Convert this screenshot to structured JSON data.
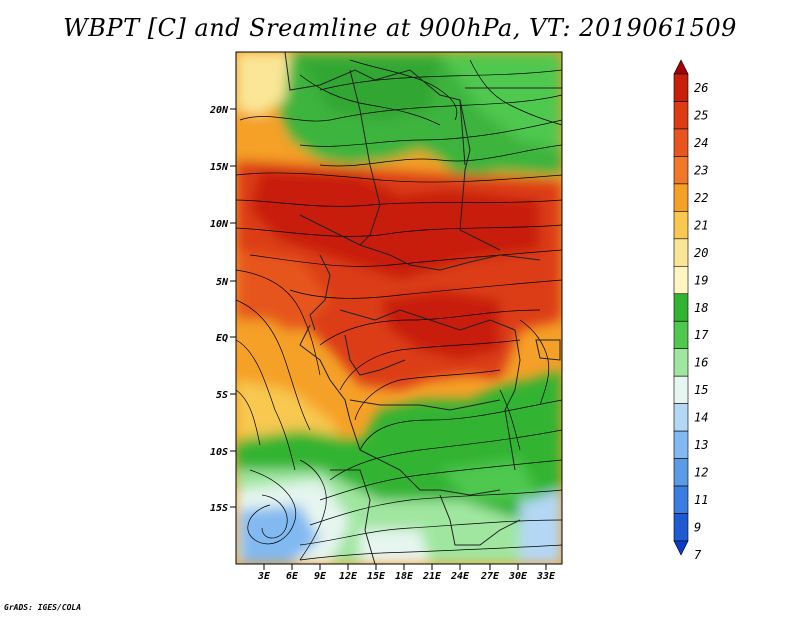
{
  "title": "WBPT [C] and Sreamline at 900hPa, VT: 2019061509",
  "footer": "GrADS: IGES/COLA",
  "map": {
    "lon_range": [
      0,
      35
    ],
    "lat_range": [
      -20,
      24
    ],
    "lat_ticks": [
      "20N",
      "15N",
      "10N",
      "5N",
      "EQ",
      "5S",
      "10S",
      "15S"
    ],
    "lon_ticks": [
      "3E",
      "6E",
      "9E",
      "12E",
      "15E",
      "18E",
      "21E",
      "24E",
      "27E",
      "30E",
      "33E"
    ],
    "field": "WBPT",
    "overlay": "streamlines"
  },
  "colorbar": {
    "labels": [
      "26",
      "25",
      "24",
      "23",
      "22",
      "21",
      "20",
      "19",
      "18",
      "17",
      "16",
      "15",
      "14",
      "13",
      "12",
      "11",
      "9",
      "7"
    ],
    "colors": [
      "#a50000",
      "#c81e0a",
      "#dc3c14",
      "#e6561e",
      "#f07828",
      "#f5a028",
      "#f8c850",
      "#fae696",
      "#fff5c0",
      "#32b432",
      "#50c850",
      "#a0e6a0",
      "#e6f5f0",
      "#b4d7f5",
      "#82b9f0",
      "#5a9be6",
      "#3c7de1",
      "#1e5ad2",
      "#0a3cc8"
    ]
  }
}
